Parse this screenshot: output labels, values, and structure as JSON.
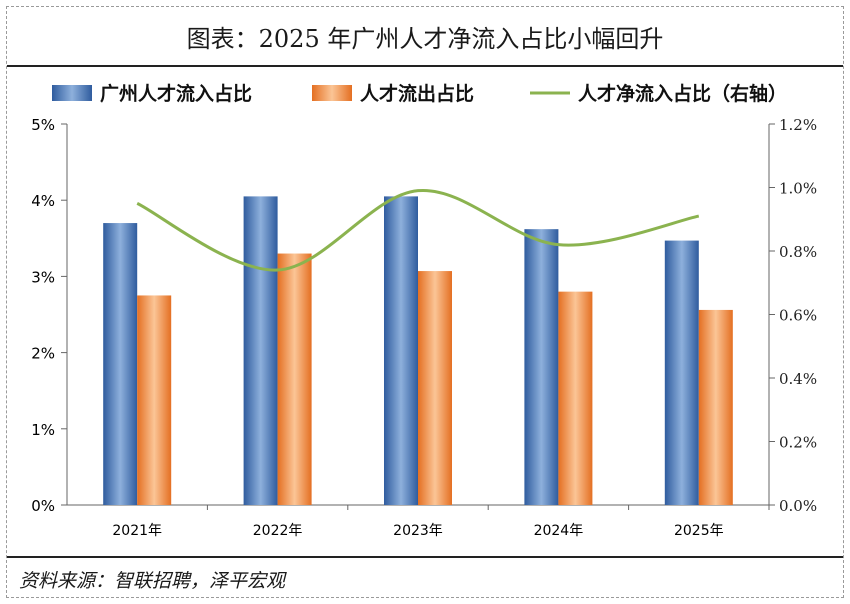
{
  "title": "图表：2025 年广州人才净流入占比小幅回升",
  "source": "资料来源：智联招聘，泽平宏观",
  "chart_data": {
    "type": "bar",
    "categories": [
      "2021年",
      "2022年",
      "2023年",
      "2024年",
      "2025年"
    ],
    "series": [
      {
        "name": "广州人才流入占比",
        "type": "bar",
        "axis": "left",
        "color": "#4a78b8",
        "values": [
          3.7,
          4.05,
          4.05,
          3.62,
          3.47
        ]
      },
      {
        "name": "人才流出占比",
        "type": "bar",
        "axis": "left",
        "color": "#f0883c",
        "values": [
          2.75,
          3.3,
          3.07,
          2.8,
          2.56
        ]
      },
      {
        "name": "人才净流入占比（右轴）",
        "type": "line",
        "axis": "right",
        "color": "#8bb34f",
        "values": [
          0.95,
          0.74,
          0.99,
          0.82,
          0.91
        ]
      }
    ],
    "y_left": {
      "min": 0,
      "max": 5,
      "ticks": [
        "0%",
        "1%",
        "2%",
        "3%",
        "4%",
        "5%"
      ]
    },
    "y_right": {
      "min": 0,
      "max": 1.2,
      "ticks": [
        "0.0%",
        "0.2%",
        "0.4%",
        "0.6%",
        "0.8%",
        "1.0%",
        "1.2%"
      ]
    },
    "legend_position": "top",
    "grid": false
  }
}
